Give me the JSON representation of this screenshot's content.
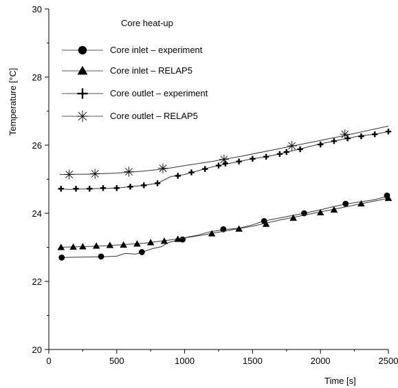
{
  "chart_data": {
    "type": "line",
    "title": "Core heat-up",
    "xlabel": "Time [s]",
    "ylabel": "Temperature [°C]",
    "xlim": [
      0,
      2500
    ],
    "ylim": [
      20,
      30
    ],
    "xticks": [
      0,
      500,
      1000,
      1500,
      2000,
      2500
    ],
    "yticks": [
      20,
      22,
      24,
      26,
      28,
      30
    ],
    "grid": false,
    "legend_placement": "top-left",
    "series": [
      {
        "name": "Core inlet – experiment",
        "marker": "circle",
        "color": "#000000",
        "line": [
          [
            80,
            22.7
          ],
          [
            200,
            22.71
          ],
          [
            380,
            22.72
          ],
          [
            500,
            22.74
          ],
          [
            560,
            22.82
          ],
          [
            640,
            22.8
          ],
          [
            690,
            22.86
          ],
          [
            760,
            22.96
          ],
          [
            830,
            23.02
          ],
          [
            880,
            23.14
          ],
          [
            960,
            23.22
          ],
          [
            1020,
            23.3
          ],
          [
            1100,
            23.36
          ],
          [
            1180,
            23.45
          ],
          [
            1290,
            23.52
          ],
          [
            1400,
            23.56
          ],
          [
            1500,
            23.66
          ],
          [
            1580,
            23.77
          ],
          [
            1700,
            23.86
          ],
          [
            1800,
            23.94
          ],
          [
            1880,
            24.0
          ],
          [
            2000,
            24.1
          ],
          [
            2100,
            24.2
          ],
          [
            2200,
            24.28
          ],
          [
            2300,
            24.34
          ],
          [
            2400,
            24.4
          ],
          [
            2490,
            24.5
          ]
        ],
        "markers": [
          [
            95,
            22.7
          ],
          [
            385,
            22.73
          ],
          [
            685,
            22.86
          ],
          [
            985,
            23.23
          ],
          [
            1285,
            23.53
          ],
          [
            1585,
            23.77
          ],
          [
            1880,
            24.0
          ],
          [
            2185,
            24.28
          ],
          [
            2490,
            24.52
          ]
        ]
      },
      {
        "name": "Core inlet – RELAP5",
        "marker": "triangle",
        "color": "#000000",
        "line": [
          [
            80,
            23.0
          ],
          [
            400,
            23.04
          ],
          [
            700,
            23.12
          ],
          [
            900,
            23.22
          ],
          [
            1100,
            23.34
          ],
          [
            1300,
            23.48
          ],
          [
            1500,
            23.62
          ],
          [
            1700,
            23.8
          ],
          [
            1900,
            23.96
          ],
          [
            2100,
            24.12
          ],
          [
            2300,
            24.28
          ],
          [
            2500,
            24.44
          ]
        ],
        "markers": [
          [
            90,
            23.0
          ],
          [
            180,
            23.01
          ],
          [
            250,
            23.02
          ],
          [
            350,
            23.04
          ],
          [
            450,
            23.06
          ],
          [
            550,
            23.07
          ],
          [
            650,
            23.1
          ],
          [
            750,
            23.14
          ],
          [
            850,
            23.18
          ],
          [
            950,
            23.24
          ],
          [
            1200,
            23.4
          ],
          [
            1400,
            23.54
          ],
          [
            1600,
            23.68
          ],
          [
            1800,
            23.86
          ],
          [
            2000,
            24.02
          ],
          [
            2100,
            24.1
          ],
          [
            2300,
            24.28
          ],
          [
            2500,
            24.44
          ]
        ]
      },
      {
        "name": "Core outlet – experiment",
        "marker": "plus",
        "color": "#000000",
        "line": [
          [
            80,
            24.72
          ],
          [
            150,
            24.7
          ],
          [
            300,
            24.72
          ],
          [
            500,
            24.74
          ],
          [
            600,
            24.78
          ],
          [
            700,
            24.82
          ],
          [
            800,
            24.88
          ],
          [
            860,
            25.0
          ],
          [
            900,
            25.08
          ],
          [
            1000,
            25.14
          ],
          [
            1100,
            25.25
          ],
          [
            1200,
            25.36
          ],
          [
            1300,
            25.44
          ],
          [
            1400,
            25.52
          ],
          [
            1500,
            25.6
          ],
          [
            1600,
            25.66
          ],
          [
            1700,
            25.74
          ],
          [
            1800,
            25.84
          ],
          [
            1900,
            25.94
          ],
          [
            2000,
            26.04
          ],
          [
            2100,
            26.12
          ],
          [
            2200,
            26.2
          ],
          [
            2300,
            26.28
          ],
          [
            2400,
            26.32
          ],
          [
            2500,
            26.4
          ]
        ],
        "markers": [
          [
            90,
            24.72
          ],
          [
            200,
            24.72
          ],
          [
            300,
            24.72
          ],
          [
            400,
            24.74
          ],
          [
            500,
            24.74
          ],
          [
            600,
            24.78
          ],
          [
            700,
            24.82
          ],
          [
            800,
            24.88
          ],
          [
            950,
            25.1
          ],
          [
            1050,
            25.2
          ],
          [
            1150,
            25.3
          ],
          [
            1250,
            25.4
          ],
          [
            1300,
            25.46
          ],
          [
            1400,
            25.52
          ],
          [
            1500,
            25.6
          ],
          [
            1600,
            25.66
          ],
          [
            1700,
            25.74
          ],
          [
            1750,
            25.8
          ],
          [
            1850,
            25.88
          ],
          [
            2000,
            26.02
          ],
          [
            2100,
            26.12
          ],
          [
            2200,
            26.2
          ],
          [
            2300,
            26.26
          ],
          [
            2400,
            26.32
          ],
          [
            2500,
            26.4
          ]
        ]
      },
      {
        "name": "Core outlet – RELAP5",
        "marker": "asterisk",
        "color": "#000000",
        "line": [
          [
            80,
            25.14
          ],
          [
            300,
            25.15
          ],
          [
            500,
            25.18
          ],
          [
            700,
            25.24
          ],
          [
            850,
            25.3
          ],
          [
            1000,
            25.4
          ],
          [
            1200,
            25.52
          ],
          [
            1400,
            25.66
          ],
          [
            1600,
            25.82
          ],
          [
            1800,
            25.98
          ],
          [
            2000,
            26.14
          ],
          [
            2200,
            26.3
          ],
          [
            2500,
            26.56
          ]
        ],
        "markers": [
          [
            150,
            25.14
          ],
          [
            340,
            25.16
          ],
          [
            590,
            25.22
          ],
          [
            840,
            25.32
          ],
          [
            1290,
            25.58
          ],
          [
            1790,
            25.98
          ],
          [
            2180,
            26.32
          ]
        ]
      }
    ]
  }
}
